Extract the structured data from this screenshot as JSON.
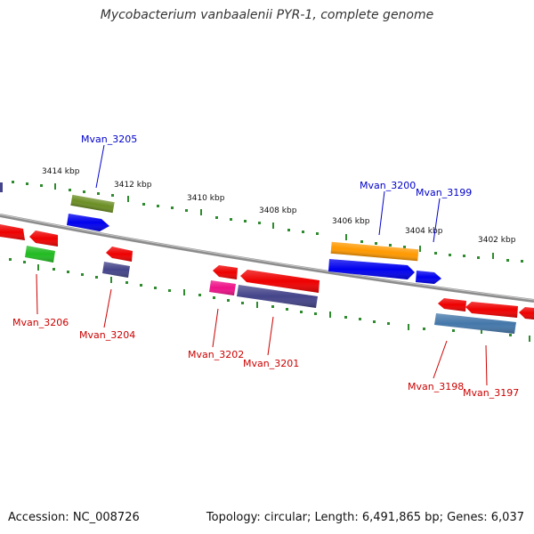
{
  "title": "Mycobacterium vanbaalenii PYR-1, complete genome",
  "accession": "Accession: NC_008726",
  "topology": "Topology: circular; Length: 6,491,865 bp; Genes: 6,037",
  "colors": {
    "backbone": "#8c8c8c",
    "ticks": "#2e8b2e",
    "label_forward": "#0000cc",
    "label_reverse": "#cc0000"
  },
  "ticks": [
    {
      "label": "3414 kbp"
    },
    {
      "label": "3412 kbp"
    },
    {
      "label": "3410 kbp"
    },
    {
      "label": "3408 kbp"
    },
    {
      "label": "3406 kbp"
    },
    {
      "label": "3404 kbp"
    },
    {
      "label": "3402 kbp"
    }
  ],
  "genes": [
    {
      "label": "Mvan_3206",
      "strand": "reverse",
      "color": "#22bb22"
    },
    {
      "label": "Mvan_3205",
      "strand": "forward",
      "color": "#0000ee"
    },
    {
      "label": "Mvan_3204",
      "strand": "reverse",
      "color": "#44448a"
    },
    {
      "label": "Mvan_3202",
      "strand": "reverse",
      "color": "#ee1188"
    },
    {
      "label": "Mvan_3201",
      "strand": "reverse",
      "color": "#44448a"
    },
    {
      "label": "Mvan_3200",
      "strand": "forward",
      "color": "#0000ee"
    },
    {
      "label": "Mvan_3199",
      "strand": "forward",
      "color": "#0000ee"
    },
    {
      "label": "Mvan_3198",
      "strand": "reverse",
      "color": "#4477aa"
    },
    {
      "label": "Mvan_3197",
      "strand": "reverse",
      "color": "#ee0000"
    }
  ]
}
